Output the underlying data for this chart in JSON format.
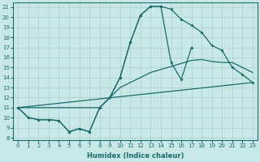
{
  "xlabel": "Humidex (Indice chaleur)",
  "bg_color": "#c8e8e8",
  "line_color": "#1a6b6b",
  "grid_color": "#b0cece",
  "xlim": [
    -0.5,
    23.5
  ],
  "ylim": [
    7.8,
    21.5
  ],
  "xticks": [
    0,
    1,
    2,
    3,
    4,
    5,
    6,
    7,
    8,
    9,
    10,
    11,
    12,
    13,
    14,
    15,
    16,
    17,
    18,
    19,
    20,
    21,
    22,
    23
  ],
  "yticks": [
    8,
    9,
    10,
    11,
    12,
    13,
    14,
    15,
    16,
    17,
    18,
    19,
    20,
    21
  ],
  "curve1_x": [
    0,
    1,
    2,
    3,
    4,
    5,
    6,
    7,
    8,
    9,
    10,
    11,
    12,
    13,
    14,
    15,
    16,
    17,
    18,
    19,
    20,
    21,
    22,
    23
  ],
  "curve1_y": [
    11,
    10,
    9.8,
    9.8,
    9.7,
    8.6,
    8.9,
    8.6,
    11,
    12,
    14,
    17.5,
    20.2,
    21.1,
    21.1,
    20.8,
    19.8,
    19.2,
    18.5,
    17.2,
    16.7,
    15.0,
    14.3,
    13.5
  ],
  "curve2_x": [
    0,
    1,
    2,
    3,
    4,
    5,
    6,
    7,
    8,
    9,
    10,
    11,
    12,
    13,
    14,
    15,
    16,
    17
  ],
  "curve2_y": [
    11,
    10,
    9.8,
    9.8,
    9.7,
    8.6,
    8.9,
    8.6,
    11,
    12,
    14,
    17.5,
    20.2,
    21.1,
    21.1,
    15.5,
    13.8,
    17.0
  ],
  "curve3_x": [
    0,
    8,
    9,
    10,
    11,
    12,
    13,
    17,
    18,
    19,
    20,
    21,
    22,
    23
  ],
  "curve3_y": [
    11,
    11,
    12,
    13,
    13.5,
    14,
    14.5,
    15.7,
    15.8,
    15.6,
    15.5,
    15.5,
    15.0,
    14.5
  ],
  "curve4_x": [
    0,
    23
  ],
  "curve4_y": [
    11,
    13.5
  ],
  "marker": "D",
  "markersize": 2,
  "linewidth": 0.9,
  "tick_labelsize": 5,
  "xlabel_fontsize": 6
}
